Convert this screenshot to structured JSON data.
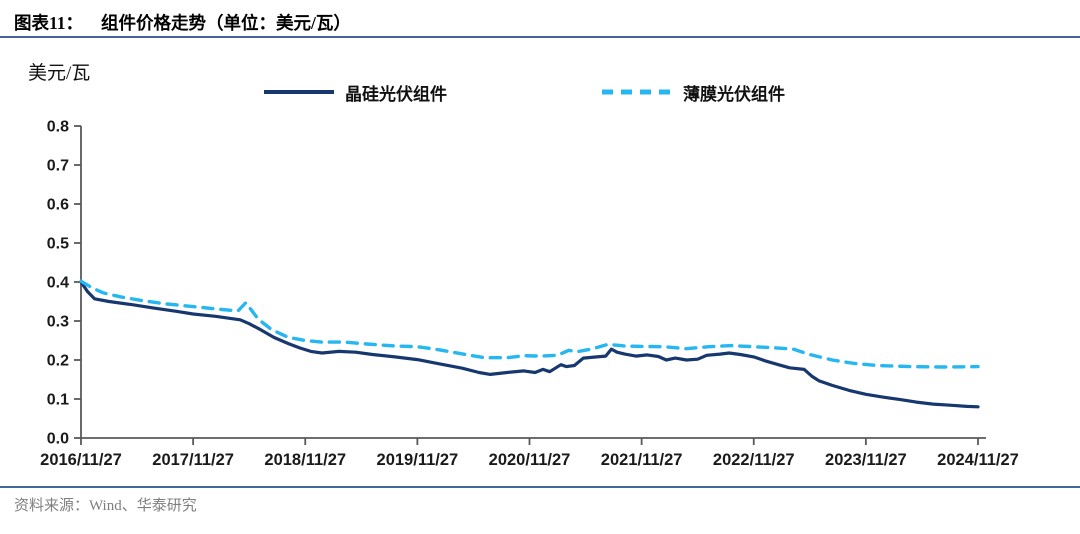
{
  "figure": {
    "title_prefix": "图表11：",
    "title": "组件价格走势（单位：美元/瓦）",
    "unit_label": "美元/瓦",
    "source": "资料来源：Wind、华泰研究"
  },
  "legend": [
    {
      "label": "晶硅光伏组件",
      "color": "#17386e",
      "style": "solid"
    },
    {
      "label": "薄膜光伏组件",
      "color": "#27b7f0",
      "style": "dashed"
    }
  ],
  "colors": {
    "crystalline_line": "#17386e",
    "thinfilm_line": "#27b7f0",
    "divider_blue": "#44679b",
    "axis": "#595959",
    "tick_text": "#1a1a1a",
    "source_text": "#7f7f7f"
  },
  "chart_data": {
    "type": "line",
    "title": "组件价格走势",
    "unit": "美元/瓦",
    "xlabel": "",
    "ylabel": "美元/瓦",
    "ylim": [
      0.0,
      0.8
    ],
    "y_tick_labels": [
      "0.0",
      "0.1",
      "0.2",
      "0.3",
      "0.4",
      "0.5",
      "0.6",
      "0.7",
      "0.8"
    ],
    "x_tick_labels": [
      "2016/11/27",
      "2017/11/27",
      "2018/11/27",
      "2019/11/27",
      "2020/11/27",
      "2021/11/27",
      "2022/11/27",
      "2023/11/27",
      "2024/11/27"
    ],
    "x_span_years": 8,
    "x_unit": "years after 2016/11/27",
    "grid": false,
    "legend_position": "top",
    "series": [
      {
        "name": "晶硅光伏组件",
        "color": "#17386e",
        "dash": false,
        "points": [
          [
            0.0,
            0.4
          ],
          [
            0.06,
            0.375
          ],
          [
            0.12,
            0.357
          ],
          [
            0.25,
            0.35
          ],
          [
            0.45,
            0.342
          ],
          [
            0.65,
            0.333
          ],
          [
            0.85,
            0.325
          ],
          [
            1.0,
            0.318
          ],
          [
            1.2,
            0.312
          ],
          [
            1.42,
            0.303
          ],
          [
            1.5,
            0.293
          ],
          [
            1.6,
            0.278
          ],
          [
            1.72,
            0.258
          ],
          [
            1.85,
            0.242
          ],
          [
            1.95,
            0.231
          ],
          [
            2.05,
            0.222
          ],
          [
            2.15,
            0.218
          ],
          [
            2.3,
            0.222
          ],
          [
            2.45,
            0.22
          ],
          [
            2.6,
            0.214
          ],
          [
            2.8,
            0.208
          ],
          [
            3.0,
            0.201
          ],
          [
            3.2,
            0.19
          ],
          [
            3.4,
            0.179
          ],
          [
            3.55,
            0.168
          ],
          [
            3.65,
            0.163
          ],
          [
            3.8,
            0.168
          ],
          [
            3.95,
            0.172
          ],
          [
            4.05,
            0.168
          ],
          [
            4.12,
            0.176
          ],
          [
            4.18,
            0.17
          ],
          [
            4.28,
            0.188
          ],
          [
            4.33,
            0.183
          ],
          [
            4.4,
            0.186
          ],
          [
            4.48,
            0.205
          ],
          [
            4.6,
            0.208
          ],
          [
            4.68,
            0.21
          ],
          [
            4.73,
            0.228
          ],
          [
            4.78,
            0.22
          ],
          [
            4.85,
            0.215
          ],
          [
            4.95,
            0.21
          ],
          [
            5.05,
            0.213
          ],
          [
            5.15,
            0.209
          ],
          [
            5.22,
            0.2
          ],
          [
            5.3,
            0.205
          ],
          [
            5.4,
            0.2
          ],
          [
            5.5,
            0.202
          ],
          [
            5.58,
            0.212
          ],
          [
            5.7,
            0.215
          ],
          [
            5.78,
            0.218
          ],
          [
            5.88,
            0.214
          ],
          [
            6.0,
            0.208
          ],
          [
            6.1,
            0.198
          ],
          [
            6.22,
            0.188
          ],
          [
            6.32,
            0.18
          ],
          [
            6.45,
            0.176
          ],
          [
            6.52,
            0.158
          ],
          [
            6.58,
            0.147
          ],
          [
            6.7,
            0.135
          ],
          [
            6.85,
            0.122
          ],
          [
            7.0,
            0.112
          ],
          [
            7.15,
            0.105
          ],
          [
            7.3,
            0.099
          ],
          [
            7.45,
            0.092
          ],
          [
            7.6,
            0.087
          ],
          [
            7.75,
            0.084
          ],
          [
            7.9,
            0.081
          ],
          [
            8.0,
            0.08
          ]
        ]
      },
      {
        "name": "薄膜光伏组件",
        "color": "#27b7f0",
        "dash": true,
        "points": [
          [
            0.0,
            0.402
          ],
          [
            0.1,
            0.385
          ],
          [
            0.2,
            0.372
          ],
          [
            0.35,
            0.362
          ],
          [
            0.55,
            0.352
          ],
          [
            0.75,
            0.344
          ],
          [
            1.0,
            0.337
          ],
          [
            1.2,
            0.331
          ],
          [
            1.4,
            0.326
          ],
          [
            1.47,
            0.347
          ],
          [
            1.58,
            0.305
          ],
          [
            1.7,
            0.278
          ],
          [
            1.85,
            0.258
          ],
          [
            2.0,
            0.25
          ],
          [
            2.15,
            0.246
          ],
          [
            2.35,
            0.246
          ],
          [
            2.55,
            0.241
          ],
          [
            2.8,
            0.236
          ],
          [
            3.0,
            0.234
          ],
          [
            3.2,
            0.226
          ],
          [
            3.45,
            0.213
          ],
          [
            3.6,
            0.206
          ],
          [
            3.8,
            0.206
          ],
          [
            3.95,
            0.211
          ],
          [
            4.1,
            0.21
          ],
          [
            4.25,
            0.212
          ],
          [
            4.35,
            0.225
          ],
          [
            4.42,
            0.221
          ],
          [
            4.55,
            0.228
          ],
          [
            4.7,
            0.24
          ],
          [
            4.85,
            0.236
          ],
          [
            5.0,
            0.235
          ],
          [
            5.2,
            0.234
          ],
          [
            5.4,
            0.229
          ],
          [
            5.6,
            0.234
          ],
          [
            5.8,
            0.237
          ],
          [
            6.0,
            0.234
          ],
          [
            6.2,
            0.231
          ],
          [
            6.35,
            0.228
          ],
          [
            6.5,
            0.214
          ],
          [
            6.7,
            0.2
          ],
          [
            6.9,
            0.191
          ],
          [
            7.1,
            0.186
          ],
          [
            7.4,
            0.183
          ],
          [
            7.7,
            0.182
          ],
          [
            8.0,
            0.183
          ]
        ]
      }
    ]
  }
}
